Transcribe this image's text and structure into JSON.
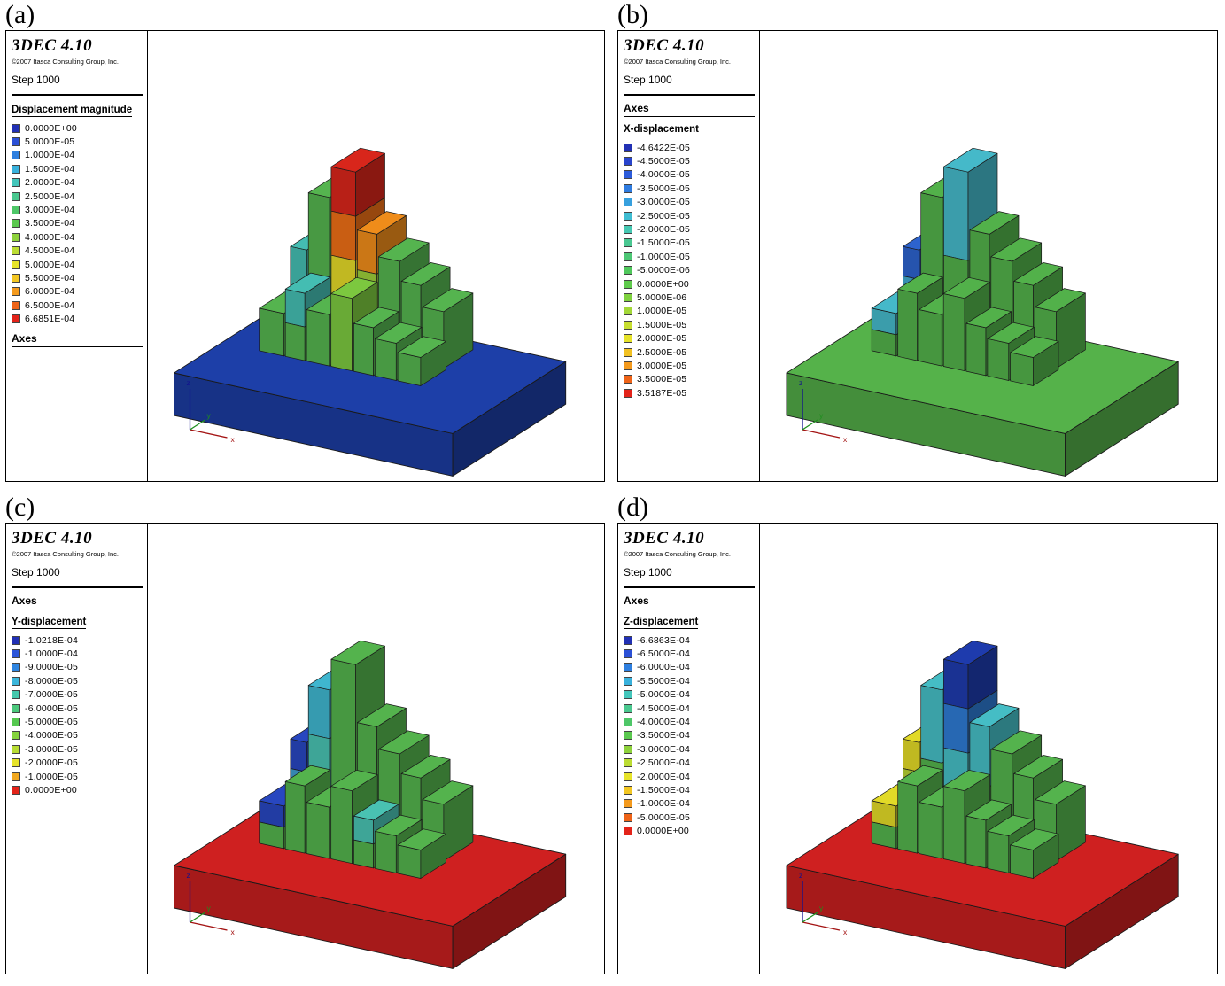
{
  "axis_labels": {
    "x": "x",
    "y": "y",
    "z": "z"
  },
  "panels": [
    {
      "id": "a",
      "label": "(a)",
      "app_name": "3DEC 4.10",
      "copyright": "©2007 Itasca Consulting Group, Inc.",
      "step": "Step 1000",
      "axes_label": "Axes",
      "axes_position": "below",
      "legend_title": "Displacement magnitude",
      "legend": [
        {
          "value": "0.0000E+00",
          "color": "#2130b4"
        },
        {
          "value": "5.0000E-05",
          "color": "#2b50d6"
        },
        {
          "value": "1.0000E-04",
          "color": "#2e7fdf"
        },
        {
          "value": "1.5000E-04",
          "color": "#38b1dc"
        },
        {
          "value": "2.0000E-04",
          "color": "#43c6bb"
        },
        {
          "value": "2.5000E-04",
          "color": "#4ac88f"
        },
        {
          "value": "3.0000E-04",
          "color": "#4ec768"
        },
        {
          "value": "3.5000E-04",
          "color": "#5bc94f"
        },
        {
          "value": "4.0000E-04",
          "color": "#8ed23c"
        },
        {
          "value": "4.5000E-04",
          "color": "#bcdd33"
        },
        {
          "value": "5.0000E-04",
          "color": "#e7e42a"
        },
        {
          "value": "5.5000E-04",
          "color": "#f3c723"
        },
        {
          "value": "6.0000E-04",
          "color": "#f49a1d"
        },
        {
          "value": "6.5000E-04",
          "color": "#ee6318"
        },
        {
          "value": "6.6851E-04",
          "color": "#e32319"
        }
      ],
      "scene": {
        "slab_color": "#1d3fa8",
        "block_color": "#55b44f",
        "overrides": {
          "0": [
            "#44bdb2",
            "#55b44f"
          ],
          "2": [
            "#d8261b",
            "#ec6f16",
            "#e3d928",
            "#55b44f"
          ],
          "3": [
            "#ef8c1a",
            "#9ccf3a",
            "#55b44f"
          ],
          "8": [
            "#44bdb2",
            "#55b44f"
          ],
          "10": [
            "#7cc83f"
          ]
        }
      }
    },
    {
      "id": "b",
      "label": "(b)",
      "app_name": "3DEC 4.10",
      "copyright": "©2007 Itasca Consulting Group, Inc.",
      "step": "Step 1000",
      "axes_label": "Axes",
      "axes_position": "above",
      "legend_title": "X-displacement",
      "legend": [
        {
          "value": "-4.6422E-05",
          "color": "#2130b4"
        },
        {
          "value": "-4.5000E-05",
          "color": "#2844cd"
        },
        {
          "value": "-4.0000E-05",
          "color": "#2c5cdb"
        },
        {
          "value": "-3.5000E-05",
          "color": "#2f7ce0"
        },
        {
          "value": "-3.0000E-05",
          "color": "#37a0de"
        },
        {
          "value": "-2.5000E-05",
          "color": "#3fbdd2"
        },
        {
          "value": "-2.0000E-05",
          "color": "#46c8b2"
        },
        {
          "value": "-1.5000E-05",
          "color": "#4ac892"
        },
        {
          "value": "-1.0000E-05",
          "color": "#4dc775"
        },
        {
          "value": "-5.0000E-06",
          "color": "#50c85c"
        },
        {
          "value": "0.0000E+00",
          "color": "#5fcb4c"
        },
        {
          "value": "5.0000E-06",
          "color": "#7fd23f"
        },
        {
          "value": "1.0000E-05",
          "color": "#a3d838"
        },
        {
          "value": "1.5000E-05",
          "color": "#c8df30"
        },
        {
          "value": "2.0000E-05",
          "color": "#e6e32a"
        },
        {
          "value": "2.5000E-05",
          "color": "#f2c122"
        },
        {
          "value": "3.0000E-05",
          "color": "#f49a1d"
        },
        {
          "value": "3.5000E-05",
          "color": "#ee6318"
        },
        {
          "value": "3.5187E-05",
          "color": "#e32319"
        }
      ],
      "scene": {
        "slab_color": "#55b24a",
        "block_color": "#52b14a",
        "overrides": {
          "0": [
            "#2d63cd",
            "#3fa8cf",
            "#52b14a"
          ],
          "2": [
            "#45b9c9",
            "#52b14a"
          ],
          "7": [
            "#45b9c9",
            "#52b14a"
          ]
        }
      }
    },
    {
      "id": "c",
      "label": "(c)",
      "app_name": "3DEC 4.10",
      "copyright": "©2007 Itasca Consulting Group, Inc.",
      "step": "Step 1000",
      "axes_label": "Axes",
      "axes_position": "above",
      "legend_title": "Y-displacement",
      "legend": [
        {
          "value": "-1.0218E-04",
          "color": "#2130b4"
        },
        {
          "value": "-1.0000E-04",
          "color": "#2b55d9"
        },
        {
          "value": "-9.0000E-05",
          "color": "#2f85e0"
        },
        {
          "value": "-8.0000E-05",
          "color": "#3bb6db"
        },
        {
          "value": "-7.0000E-05",
          "color": "#45c8ad"
        },
        {
          "value": "-6.0000E-05",
          "color": "#4bc87c"
        },
        {
          "value": "-5.0000E-05",
          "color": "#55c84f"
        },
        {
          "value": "-4.0000E-05",
          "color": "#85d33d"
        },
        {
          "value": "-3.0000E-05",
          "color": "#b7dc33"
        },
        {
          "value": "-2.0000E-05",
          "color": "#e6e32a"
        },
        {
          "value": "-1.0000E-05",
          "color": "#f2a81f"
        },
        {
          "value": "0.0000E+00",
          "color": "#e32319"
        }
      ],
      "scene": {
        "slab_color": "#cf2020",
        "block_color": "#54b34d",
        "overrides": {
          "0": [
            "#2847c0",
            "#3f9ecf",
            "#54b34d"
          ],
          "1": [
            "#3fb6cf",
            "#49c2b2",
            "#54b34d"
          ],
          "7": [
            "#2847c0",
            "#54b34d"
          ],
          "11": [
            "#49c2b2",
            "#54b34d"
          ]
        }
      }
    },
    {
      "id": "d",
      "label": "(d)",
      "app_name": "3DEC 4.10",
      "copyright": "©2007 Itasca Consulting Group, Inc.",
      "step": "Step 1000",
      "axes_label": "Axes",
      "axes_position": "above",
      "legend_title": "Z-displacement",
      "legend": [
        {
          "value": "-6.6863E-04",
          "color": "#2130b4"
        },
        {
          "value": "-6.5000E-04",
          "color": "#2b50d6"
        },
        {
          "value": "-6.0000E-04",
          "color": "#2e7fdf"
        },
        {
          "value": "-5.5000E-04",
          "color": "#38b1dc"
        },
        {
          "value": "-5.0000E-04",
          "color": "#43c6bb"
        },
        {
          "value": "-4.5000E-04",
          "color": "#4ac88f"
        },
        {
          "value": "-4.0000E-04",
          "color": "#4ec768"
        },
        {
          "value": "-3.5000E-04",
          "color": "#5bc94f"
        },
        {
          "value": "-3.0000E-04",
          "color": "#8ed23c"
        },
        {
          "value": "-2.5000E-04",
          "color": "#bcdd33"
        },
        {
          "value": "-2.0000E-04",
          "color": "#e7e42a"
        },
        {
          "value": "-1.5000E-04",
          "color": "#f3c723"
        },
        {
          "value": "-1.0000E-04",
          "color": "#f49a1d"
        },
        {
          "value": "-5.0000E-05",
          "color": "#ee6318"
        },
        {
          "value": "0.0000E+00",
          "color": "#e32319"
        }
      ],
      "scene": {
        "slab_color": "#cf2020",
        "block_color": "#54b34d",
        "overrides": {
          "0": [
            "#e2da27",
            "#b7d434",
            "#54b34d"
          ],
          "1": [
            "#45bdc5",
            "#54b34d"
          ],
          "2": [
            "#1e3bad",
            "#2e7ad2",
            "#45bdc5",
            "#54b34d"
          ],
          "3": [
            "#45bdc5",
            "#54b34d"
          ],
          "7": [
            "#e2da27",
            "#54b34d"
          ]
        }
      }
    }
  ]
}
